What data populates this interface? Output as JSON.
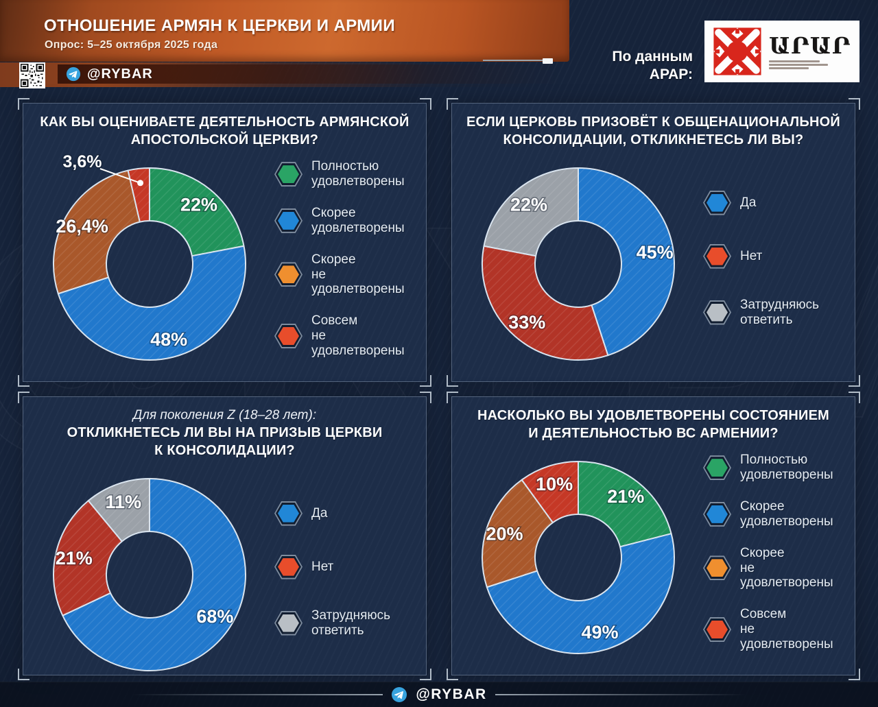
{
  "watermark": "@RYBAR",
  "header": {
    "title": "ОТНОШЕНИЕ АРМЯН К ЦЕРКВИ И АРМИИ",
    "subtitle": "Опрос: 5–25 октября 2025 года",
    "handle": "@RYBAR",
    "source_line1": "По данным",
    "source_line2": "АРАР:",
    "logo_text": "ԱՐԱՐ"
  },
  "footer": {
    "handle": "@RYBAR"
  },
  "chart_data": [
    {
      "type": "pie",
      "subtype": "donut",
      "panel": "top-left",
      "title_lines": [
        "КАК ВЫ ОЦЕНИВАЕТЕ ДЕЯТЕЛЬНОСТЬ АРМЯНСКОЙ",
        "АПОСТОЛЬСКОЙ ЦЕРКВИ?"
      ],
      "slices": [
        {
          "label": "Полностью удовлетворены",
          "value": 22,
          "display": "22%",
          "color": "#21935b"
        },
        {
          "label": "Скорее удовлетворены",
          "value": 48,
          "display": "48%",
          "color": "#2178cc"
        },
        {
          "label": "Скорее не удовлетворены",
          "value": 26.4,
          "display": "26,4%",
          "color": "#a9582b"
        },
        {
          "label": "Совсем не удовлетворены",
          "value": 3.6,
          "display": "3,6%",
          "color": "#c53826",
          "outside": true
        }
      ],
      "legend": [
        {
          "color": "#2aa465",
          "lines": [
            "Полностью",
            "удовлетворены"
          ]
        },
        {
          "color": "#2187d7",
          "lines": [
            "Скорее",
            "удовлетворены"
          ]
        },
        {
          "color": "#ef8f2f",
          "lines": [
            "Скорее",
            "не удовлетворены"
          ]
        },
        {
          "color": "#e84d2b",
          "lines": [
            "Совсем",
            "не удовлетворены"
          ]
        }
      ]
    },
    {
      "type": "pie",
      "subtype": "donut",
      "panel": "top-right",
      "title_lines": [
        "ЕСЛИ ЦЕРКОВЬ ПРИЗОВЁТ К ОБЩЕНАЦИОНАЛЬНОЙ",
        "КОНСОЛИДАЦИИ, ОТКЛИКНЕТЕСЬ ЛИ ВЫ?"
      ],
      "slices": [
        {
          "label": "Да",
          "value": 45,
          "display": "45%",
          "color": "#2178cc"
        },
        {
          "label": "Нет",
          "value": 33,
          "display": "33%",
          "color": "#b23427"
        },
        {
          "label": "Затрудняюсь ответить",
          "value": 22,
          "display": "22%",
          "color": "#9ba1a8"
        }
      ],
      "legend": [
        {
          "color": "#2187d7",
          "lines": [
            "Да"
          ]
        },
        {
          "color": "#e84d2b",
          "lines": [
            "Нет"
          ]
        },
        {
          "color": "#b9bfc5",
          "lines": [
            "Затрудняюсь",
            "ответить"
          ]
        }
      ]
    },
    {
      "type": "pie",
      "subtype": "donut",
      "panel": "bottom-left",
      "title_intro": "Для поколения Z (18–28 лет):",
      "title_lines": [
        "ОТКЛИКНЕТЕСЬ ЛИ ВЫ НА ПРИЗЫВ ЦЕРКВИ",
        "К КОНСОЛИДАЦИИ?"
      ],
      "slices": [
        {
          "label": "Да",
          "value": 68,
          "display": "68%",
          "color": "#2178cc"
        },
        {
          "label": "Нет",
          "value": 21,
          "display": "21%",
          "color": "#b23427"
        },
        {
          "label": "Затрудняюсь ответить",
          "value": 11,
          "display": "11%",
          "color": "#9ba1a8"
        }
      ],
      "legend": [
        {
          "color": "#2187d7",
          "lines": [
            "Да"
          ]
        },
        {
          "color": "#e84d2b",
          "lines": [
            "Нет"
          ]
        },
        {
          "color": "#b9bfc5",
          "lines": [
            "Затрудняюсь",
            "ответить"
          ]
        }
      ]
    },
    {
      "type": "pie",
      "subtype": "donut",
      "panel": "bottom-right",
      "title_lines": [
        "НАСКОЛЬКО ВЫ УДОВЛЕТВОРЕНЫ СОСТОЯНИЕМ",
        "И ДЕЯТЕЛЬНОСТЬЮ ВС АРМЕНИИ?"
      ],
      "slices": [
        {
          "label": "Полностью удовлетворены",
          "value": 21,
          "display": "21%",
          "color": "#21935b"
        },
        {
          "label": "Скорее удовлетворены",
          "value": 49,
          "display": "49%",
          "color": "#2178cc"
        },
        {
          "label": "Скорее не удовлетворены",
          "value": 20,
          "display": "20%",
          "color": "#a9582b"
        },
        {
          "label": "Совсем не удовлетворены",
          "value": 10,
          "display": "10%",
          "color": "#c53826"
        }
      ],
      "legend": [
        {
          "color": "#2aa465",
          "lines": [
            "Полностью",
            "удовлетворены"
          ]
        },
        {
          "color": "#2187d7",
          "lines": [
            "Скорее",
            "удовлетворены"
          ]
        },
        {
          "color": "#ef8f2f",
          "lines": [
            "Скорее",
            "не удовлетворены"
          ]
        },
        {
          "color": "#e84d2b",
          "lines": [
            "Совсем",
            "не удовлетворены"
          ]
        }
      ]
    }
  ]
}
